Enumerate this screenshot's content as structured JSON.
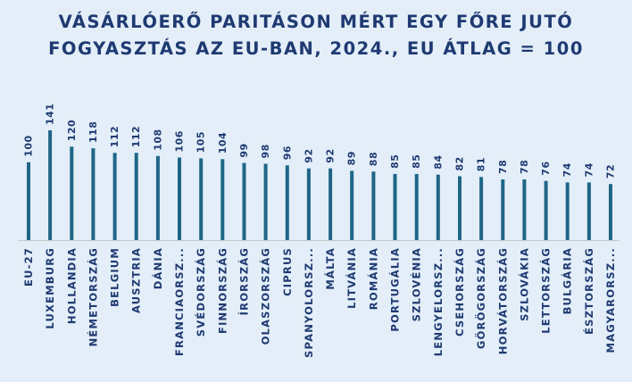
{
  "title": "VÁSÁRLÓERŐ PARITÁSON MÉRT EGY FŐRE JUTÓ FOGYASZTÁS AZ EU-BAN, 2024., EU ÁTLAG = 100",
  "colors": {
    "background": "#e3eef8",
    "bar": "#1e6688",
    "text": "#1f3a72",
    "axis": "#c9c9c9"
  },
  "chart_data": {
    "type": "bar",
    "title": "VÁSÁRLÓERŐ PARITÁSON MÉRT EGY FŐRE JUTÓ FOGYASZTÁS AZ EU-BAN, 2024., EU ÁTLAG = 100",
    "xlabel": "",
    "ylabel": "",
    "ylim": [
      0,
      141
    ],
    "grid": false,
    "legend": "none",
    "categories": [
      "EU-27",
      "LUXEMBURG",
      "HOLLANDIA",
      "NÉMETORSZÁG",
      "BELGIUM",
      "AUSZTRIA",
      "DÁNIA",
      "FRANCIAORSZ...",
      "SVÉDORSZÁG",
      "FINNORSZÁG",
      "ÍRORSZÁG",
      "OLASZORSZÁG",
      "CIPRUS",
      "SPANYOLORSZ...",
      "MÁLTA",
      "LITVÁNIA",
      "ROMÁNIA",
      "PORTUGÁLIA",
      "SZLOVÉNIA",
      "LENGYELORSZ...",
      "CSEHORSZÁG",
      "GÖRÖGORSZÁG",
      "HORVÁTORSZÁG",
      "SZLOVÁKIA",
      "LETTORSZÁG",
      "BULGÁRIA",
      "ÉSZTORSZÁG",
      "MAGYARORSZ..."
    ],
    "values": [
      100,
      141,
      120,
      118,
      112,
      112,
      108,
      106,
      105,
      104,
      99,
      98,
      96,
      92,
      92,
      89,
      88,
      85,
      85,
      84,
      82,
      81,
      78,
      78,
      76,
      74,
      74,
      72
    ]
  }
}
